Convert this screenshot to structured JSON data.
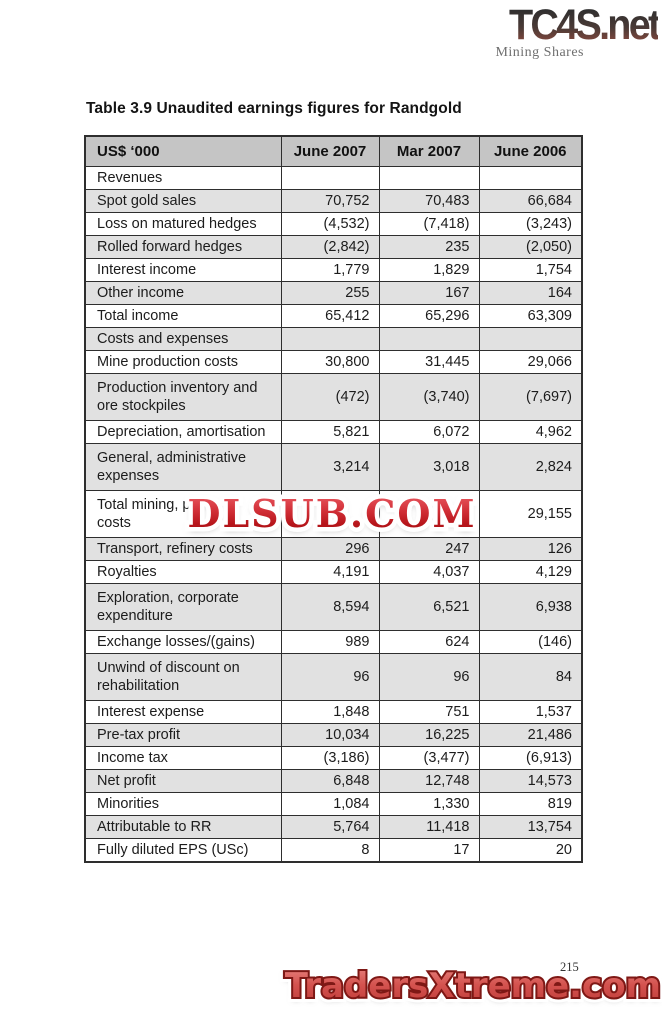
{
  "logo": {
    "text": "TC4S.net",
    "subtitle": "Mining Shares"
  },
  "title": "Table 3.9 Unaudited earnings figures for Randgold",
  "table": {
    "columns": [
      "US$ ‘000",
      "June 2007",
      "Mar 2007",
      "June 2006"
    ],
    "rows": [
      {
        "label": "Revenues",
        "values": [
          "",
          "",
          ""
        ]
      },
      {
        "label": "Spot gold sales",
        "values": [
          "70,752",
          "70,483",
          "66,684"
        ]
      },
      {
        "label": "Loss on matured hedges",
        "values": [
          "(4,532)",
          "(7,418)",
          "(3,243)"
        ]
      },
      {
        "label": "Rolled forward hedges",
        "values": [
          "(2,842)",
          "235",
          "(2,050)"
        ]
      },
      {
        "label": "Interest income",
        "values": [
          "1,779",
          "1,829",
          "1,754"
        ]
      },
      {
        "label": "Other income",
        "values": [
          "255",
          "167",
          "164"
        ]
      },
      {
        "label": "Total income",
        "values": [
          "65,412",
          "65,296",
          "63,309"
        ]
      },
      {
        "label": "Costs and expenses",
        "values": [
          "",
          "",
          ""
        ]
      },
      {
        "label": "Mine production costs",
        "values": [
          "30,800",
          "31,445",
          "29,066"
        ]
      },
      {
        "label": "Production inventory and ore stockpiles",
        "values": [
          "(472)",
          "(3,740)",
          "(7,697)"
        ]
      },
      {
        "label": "Depreciation, amortisation",
        "values": [
          "5,821",
          "6,072",
          "4,962"
        ]
      },
      {
        "label": "General, administrative expenses",
        "values": [
          "3,214",
          "3,018",
          "2,824"
        ]
      },
      {
        "label": "Total mining, pr\ncosts",
        "values": [
          "",
          "",
          "29,155"
        ]
      },
      {
        "label": "Transport, refinery costs",
        "values": [
          "296",
          "247",
          "126"
        ]
      },
      {
        "label": "Royalties",
        "values": [
          "4,191",
          "4,037",
          "4,129"
        ]
      },
      {
        "label": "Exploration, corporate expenditure",
        "values": [
          "8,594",
          "6,521",
          "6,938"
        ]
      },
      {
        "label": "Exchange losses/(gains)",
        "values": [
          "989",
          "624",
          "(146)"
        ]
      },
      {
        "label": "Unwind of discount on rehabilitation",
        "values": [
          "96",
          "96",
          "84"
        ]
      },
      {
        "label": "Interest expense",
        "values": [
          "1,848",
          "751",
          "1,537"
        ]
      },
      {
        "label": "Pre-tax profit",
        "values": [
          "10,034",
          "16,225",
          "21,486"
        ]
      },
      {
        "label": "Income tax",
        "values": [
          "(3,186)",
          "(3,477)",
          "(6,913)"
        ]
      },
      {
        "label": "Net profit",
        "values": [
          "6,848",
          "12,748",
          "14,573"
        ]
      },
      {
        "label": "Minorities",
        "values": [
          "1,084",
          "1,330",
          "819"
        ]
      },
      {
        "label": "Attributable to RR",
        "values": [
          "5,764",
          "11,418",
          "13,754"
        ]
      },
      {
        "label": "Fully diluted EPS (USc)",
        "values": [
          "8",
          "17",
          "20"
        ]
      }
    ]
  },
  "watermarks": {
    "middle": "DLSUB.COM",
    "bottom": "TradersXtreme.com"
  },
  "page_number": "215",
  "colors": {
    "watermark_red": "#c41e25",
    "traders_red": "#d4534f",
    "header_gray": "#c5c5c5",
    "row_gray": "#e1e1e1"
  }
}
